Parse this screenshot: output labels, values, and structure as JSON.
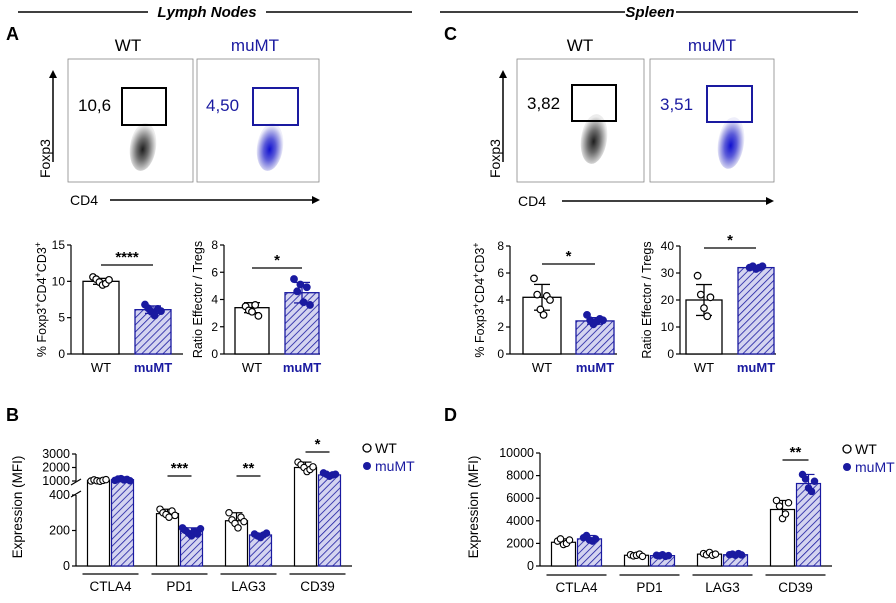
{
  "section_left": "Lymph Nodes",
  "section_right": "Spleen",
  "colors": {
    "wt": "#000000",
    "mu": "#1a1aa0",
    "mu_fill": "#c9c9ec"
  },
  "panel_labels": {
    "a": "A",
    "b": "B",
    "c": "C",
    "d": "D"
  },
  "flow": {
    "left": {
      "wt_title": "WT",
      "mu_title": "muMT",
      "wt_value": "10,6",
      "mu_value": "4,50",
      "y_label": "Foxp3",
      "x_label": "CD4"
    },
    "right": {
      "wt_title": "WT",
      "mu_title": "muMT",
      "wt_value": "3,82",
      "mu_value": "3,51",
      "y_label": "Foxp3",
      "x_label": "CD4"
    }
  },
  "chart_data": [
    {
      "id": "a1",
      "type": "bar",
      "categories": [
        "WT",
        "muMT"
      ],
      "values": [
        10.0,
        6.1
      ],
      "ylabel": "% Foxp3+CD4+CD3+",
      "ylim": [
        0,
        15
      ],
      "yticks": [
        "0",
        "5",
        "10",
        "15"
      ],
      "significance": "****",
      "points": [
        [
          10.6,
          10.3,
          9.9,
          9.5,
          9.7,
          10.2
        ],
        [
          6.8,
          6.3,
          5.8,
          5.3,
          6.2,
          5.9
        ]
      ]
    },
    {
      "id": "a2",
      "type": "bar",
      "categories": [
        "WT",
        "muMT"
      ],
      "values": [
        3.4,
        4.5
      ],
      "ylabel": "Ratio Effector / Tregs",
      "ylim": [
        0,
        8
      ],
      "yticks": [
        "0",
        "2",
        "4",
        "6",
        "8"
      ],
      "significance": "*",
      "points": [
        [
          3.5,
          3.2,
          3.1,
          3.6,
          2.8
        ],
        [
          5.5,
          4.6,
          5.1,
          3.8,
          4.9,
          3.6
        ]
      ]
    },
    {
      "id": "c1",
      "type": "bar",
      "categories": [
        "WT",
        "muMT"
      ],
      "values": [
        4.2,
        2.45
      ],
      "ylabel": "% Foxp3+CD4+CD3+",
      "ylim": [
        0,
        8
      ],
      "yticks": [
        "0",
        "2",
        "4",
        "6",
        "8"
      ],
      "significance": "*",
      "points": [
        [
          5.6,
          4.4,
          3.3,
          2.9,
          4.3,
          4.0
        ],
        [
          2.9,
          2.5,
          2.2,
          2.4,
          2.6,
          2.5
        ]
      ]
    },
    {
      "id": "c2",
      "type": "bar",
      "categories": [
        "WT",
        "muMT"
      ],
      "values": [
        20.0,
        32.0
      ],
      "ylabel": "Ratio Effector / Tregs",
      "ylim": [
        0,
        40
      ],
      "yticks": [
        "0",
        "10",
        "20",
        "30",
        "40"
      ],
      "significance": "*",
      "points": [
        [
          29,
          22,
          17,
          14,
          21
        ],
        [
          32,
          32.5,
          31.5,
          32,
          32.5
        ]
      ]
    },
    {
      "id": "b",
      "type": "bar",
      "ylabel": "Expression (MFI)",
      "categories": [
        "CTLA4",
        "PD1",
        "LAG3",
        "CD39"
      ],
      "series": [
        {
          "name": "WT",
          "values": [
            1050,
            295,
            255,
            2000
          ]
        },
        {
          "name": "muMT",
          "values": [
            1100,
            195,
            175,
            1450
          ]
        }
      ],
      "yticks_lower": [
        "0",
        "200",
        "400"
      ],
      "yticks_upper": [
        "1000",
        "2000",
        "3000"
      ],
      "significance": [
        "",
        "***",
        "**",
        "*"
      ],
      "legend": [
        "WT",
        "muMT"
      ]
    },
    {
      "id": "d",
      "type": "bar",
      "ylabel": "Expression (MFI)",
      "categories": [
        "CTLA4",
        "PD1",
        "LAG3",
        "CD39"
      ],
      "series": [
        {
          "name": "WT",
          "values": [
            2100,
            950,
            1050,
            5000
          ]
        },
        {
          "name": "muMT",
          "values": [
            2400,
            920,
            1000,
            7300
          ]
        }
      ],
      "ylim": [
        0,
        10000
      ],
      "yticks": [
        "0",
        "2000",
        "4000",
        "6000",
        "8000",
        "10000"
      ],
      "significance": [
        "",
        "",
        "",
        "**"
      ],
      "legend": [
        "WT",
        "muMT"
      ]
    }
  ]
}
